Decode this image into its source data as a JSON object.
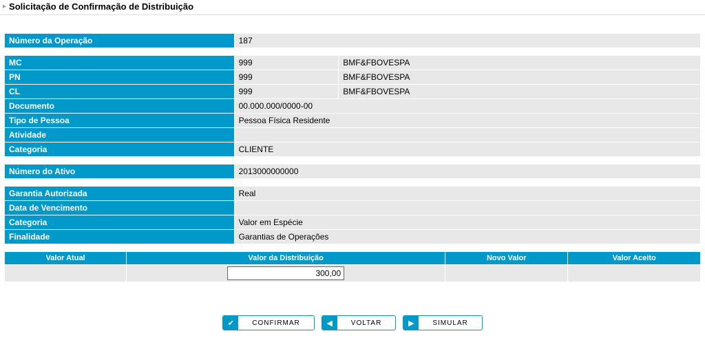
{
  "page": {
    "title": "Solicitação de Confirmação de Distribuição"
  },
  "operacao": {
    "numero_label": "Número da Operação",
    "numero": "187"
  },
  "participante": {
    "mc_label": "MC",
    "mc_code": "999",
    "mc_name": "BMF&FBOVESPA",
    "pn_label": "PN",
    "pn_code": "999",
    "pn_name": "BMF&FBOVESPA",
    "cl_label": "CL",
    "cl_code": "999",
    "cl_name": "BMF&FBOVESPA",
    "documento_label": "Documento",
    "documento": "00.000.000/0000-00",
    "tipo_pessoa_label": "Tipo de Pessoa",
    "tipo_pessoa": "Pessoa Física Residente",
    "atividade_label": "Atividade",
    "atividade": "",
    "categoria_label": "Categoria",
    "categoria": "CLIENTE"
  },
  "ativo": {
    "numero_label": "Número do Ativo",
    "numero": "2013000000000"
  },
  "garantia": {
    "garantia_autorizada_label": "Garantia Autorizada",
    "garantia_autorizada": "Real",
    "data_venc_label": "Data de Vencimento",
    "data_venc": "",
    "categoria_label": "Categoria",
    "categoria": "Valor em Espécie",
    "finalidade_label": "Finalidade",
    "finalidade": "Garantias de Operações"
  },
  "grid": {
    "col_valor_atual": "Valor Atual",
    "col_valor_dist": "Valor da Distribuição",
    "col_novo_valor": "Novo Valor",
    "col_valor_aceito": "Valor Aceito",
    "row": {
      "valor_atual": "",
      "valor_dist": "300,00",
      "novo_valor": "",
      "valor_aceito": ""
    }
  },
  "buttons": {
    "confirmar": "CONFIRMAR",
    "voltar": "VOLTAR",
    "simular": "SIMULAR"
  },
  "colors": {
    "header": "#0099c9",
    "cell": "#e8e8e8"
  }
}
